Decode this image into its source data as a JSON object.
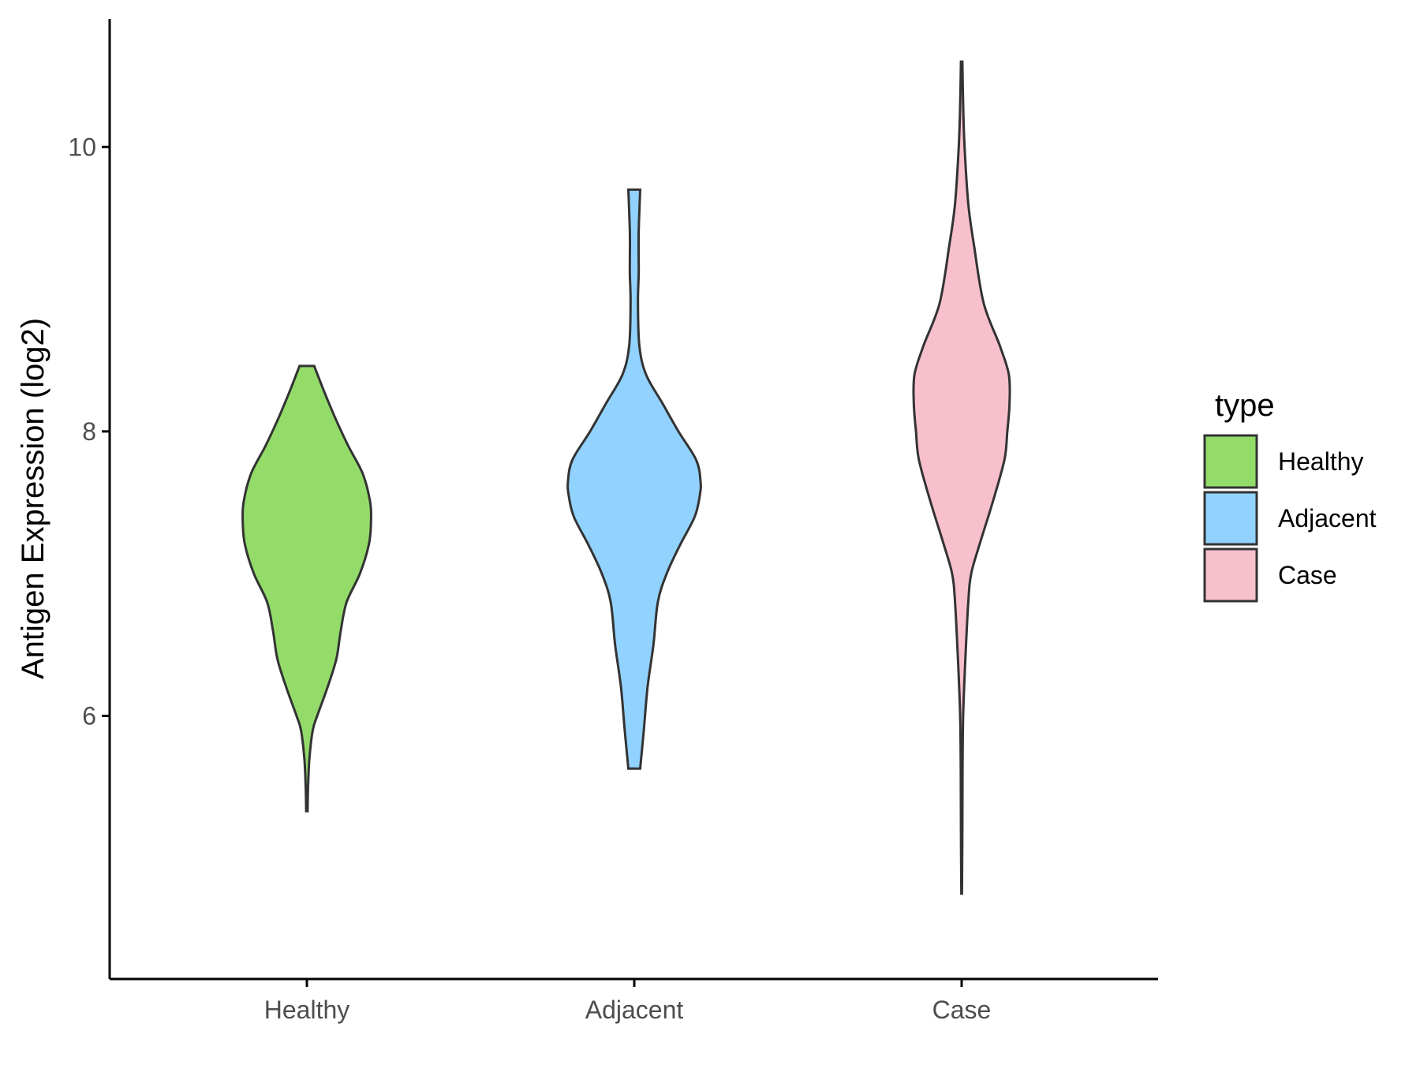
{
  "chart_data": {
    "type": "violin",
    "ylabel": "Antigen Expression (log2)",
    "xlabel": "",
    "categories": [
      "Healthy",
      "Adjacent",
      "Case"
    ],
    "yticks": [
      6,
      8,
      10
    ],
    "ylim": [
      4.15,
      10.9
    ],
    "legend": {
      "title": "type",
      "position": "right"
    },
    "grid": false,
    "series": [
      {
        "name": "Healthy",
        "color": "#93DC6A",
        "min": 5.33,
        "max": 8.46,
        "profile": [
          [
            5.33,
            0.005
          ],
          [
            5.5,
            0.008
          ],
          [
            5.7,
            0.017
          ],
          [
            5.9,
            0.04
          ],
          [
            6.0,
            0.07
          ],
          [
            6.2,
            0.14
          ],
          [
            6.4,
            0.2
          ],
          [
            6.6,
            0.23
          ],
          [
            6.8,
            0.27
          ],
          [
            7.0,
            0.36
          ],
          [
            7.2,
            0.42
          ],
          [
            7.35,
            0.435
          ],
          [
            7.5,
            0.43
          ],
          [
            7.7,
            0.38
          ],
          [
            7.9,
            0.28
          ],
          [
            8.1,
            0.19
          ],
          [
            8.3,
            0.11
          ],
          [
            8.46,
            0.05
          ]
        ]
      },
      {
        "name": "Adjacent",
        "color": "#92D2FE",
        "min": 5.63,
        "max": 9.7,
        "profile": [
          [
            5.63,
            0.04
          ],
          [
            5.9,
            0.065
          ],
          [
            6.2,
            0.09
          ],
          [
            6.5,
            0.13
          ],
          [
            6.8,
            0.16
          ],
          [
            7.0,
            0.22
          ],
          [
            7.2,
            0.31
          ],
          [
            7.4,
            0.41
          ],
          [
            7.55,
            0.445
          ],
          [
            7.65,
            0.45
          ],
          [
            7.8,
            0.42
          ],
          [
            8.0,
            0.3
          ],
          [
            8.2,
            0.19
          ],
          [
            8.4,
            0.08
          ],
          [
            8.6,
            0.035
          ],
          [
            8.9,
            0.025
          ],
          [
            9.1,
            0.03
          ],
          [
            9.2,
            0.03
          ],
          [
            9.4,
            0.03
          ],
          [
            9.7,
            0.04
          ]
        ]
      },
      {
        "name": "Case",
        "color": "#F7C0CC",
        "min": 4.75,
        "max": 10.6,
        "profile": [
          [
            4.75,
            0.002
          ],
          [
            5.2,
            0.005
          ],
          [
            5.6,
            0.006
          ],
          [
            6.0,
            0.01
          ],
          [
            6.4,
            0.025
          ],
          [
            6.8,
            0.045
          ],
          [
            7.0,
            0.065
          ],
          [
            7.2,
            0.12
          ],
          [
            7.5,
            0.21
          ],
          [
            7.8,
            0.29
          ],
          [
            8.0,
            0.31
          ],
          [
            8.2,
            0.325
          ],
          [
            8.4,
            0.32
          ],
          [
            8.6,
            0.26
          ],
          [
            8.9,
            0.15
          ],
          [
            9.3,
            0.085
          ],
          [
            9.6,
            0.045
          ],
          [
            10.0,
            0.02
          ],
          [
            10.3,
            0.01
          ],
          [
            10.6,
            0.005
          ]
        ]
      }
    ]
  }
}
